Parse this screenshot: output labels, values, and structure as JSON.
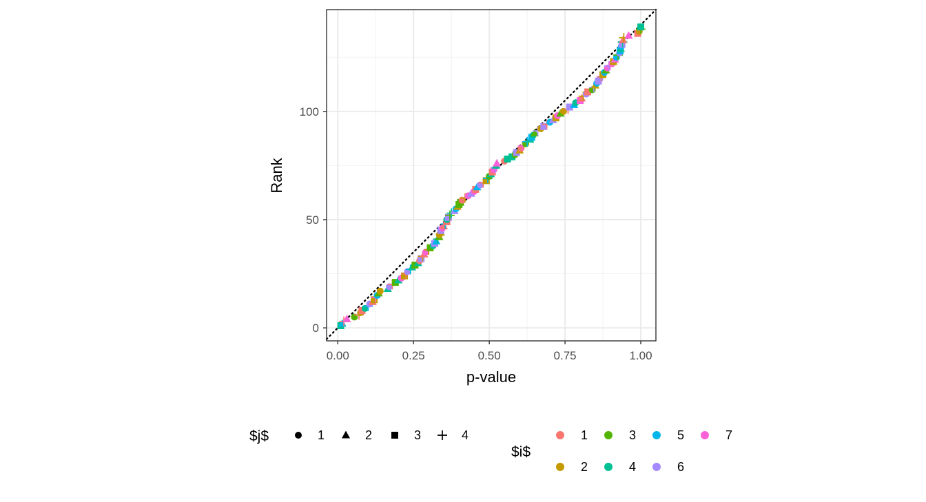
{
  "chart_data": {
    "type": "scatter",
    "xlabel": "p-value",
    "ylabel": "Rank",
    "xlim": [
      -0.037,
      1.05
    ],
    "ylim": [
      -6,
      147
    ],
    "x_ticks": [
      "0.00",
      "0.25",
      "0.50",
      "0.75",
      "1.00"
    ],
    "x_tick_values": [
      0,
      0.25,
      0.5,
      0.75,
      1
    ],
    "y_ticks": [
      "0",
      "50",
      "100"
    ],
    "y_tick_values": [
      0,
      50,
      100
    ],
    "grid": true,
    "reference_line": {
      "style": "dotted",
      "from": [
        0,
        0
      ],
      "to": [
        1,
        140
      ]
    },
    "legend_position": "bottom",
    "legend_j": {
      "title": "$j$",
      "items": [
        {
          "label": "1",
          "shape": "circle"
        },
        {
          "label": "2",
          "shape": "triangle"
        },
        {
          "label": "3",
          "shape": "square"
        },
        {
          "label": "4",
          "shape": "plus"
        }
      ]
    },
    "legend_i": {
      "title": "$i$",
      "items": [
        {
          "label": "1",
          "color": "#F8766D"
        },
        {
          "label": "2",
          "color": "#C49A00"
        },
        {
          "label": "3",
          "color": "#53B400"
        },
        {
          "label": "4",
          "color": "#00C094"
        },
        {
          "label": "5",
          "color": "#00B6EB"
        },
        {
          "label": "6",
          "color": "#A58AFF"
        },
        {
          "label": "7",
          "color": "#FB61D7"
        }
      ]
    },
    "points": [
      [
        0.01,
        1,
        4,
        3
      ],
      [
        0.015,
        2,
        5,
        2
      ],
      [
        0.02,
        3,
        1,
        4
      ],
      [
        0.03,
        4,
        7,
        2
      ],
      [
        0.055,
        5,
        3,
        1
      ],
      [
        0.07,
        6,
        1,
        4
      ],
      [
        0.075,
        7,
        2,
        1
      ],
      [
        0.08,
        8,
        1,
        3
      ],
      [
        0.09,
        9,
        4,
        1
      ],
      [
        0.1,
        10,
        5,
        4
      ],
      [
        0.105,
        11,
        6,
        1
      ],
      [
        0.115,
        12,
        1,
        2
      ],
      [
        0.12,
        13,
        2,
        3
      ],
      [
        0.125,
        14,
        7,
        4
      ],
      [
        0.13,
        15,
        5,
        1
      ],
      [
        0.135,
        16,
        3,
        2
      ],
      [
        0.14,
        17,
        2,
        1
      ],
      [
        0.165,
        18,
        4,
        2
      ],
      [
        0.17,
        19,
        6,
        1
      ],
      [
        0.18,
        20,
        1,
        4
      ],
      [
        0.19,
        21,
        3,
        3
      ],
      [
        0.2,
        22,
        4,
        2
      ],
      [
        0.21,
        23,
        7,
        1
      ],
      [
        0.22,
        24,
        2,
        3
      ],
      [
        0.225,
        25,
        1,
        4
      ],
      [
        0.23,
        26,
        6,
        1
      ],
      [
        0.24,
        27,
        5,
        4
      ],
      [
        0.245,
        28,
        4,
        2
      ],
      [
        0.255,
        29,
        3,
        3
      ],
      [
        0.265,
        30,
        4,
        2
      ],
      [
        0.27,
        31,
        1,
        1
      ],
      [
        0.275,
        32,
        6,
        3
      ],
      [
        0.28,
        33,
        2,
        4
      ],
      [
        0.285,
        34,
        1,
        2
      ],
      [
        0.29,
        35,
        7,
        1
      ],
      [
        0.3,
        36,
        2,
        4
      ],
      [
        0.305,
        37,
        3,
        3
      ],
      [
        0.315,
        38,
        4,
        1
      ],
      [
        0.32,
        39,
        6,
        3
      ],
      [
        0.325,
        40,
        5,
        2
      ],
      [
        0.33,
        41,
        4,
        4
      ],
      [
        0.335,
        42,
        3,
        2
      ],
      [
        0.335,
        43,
        2,
        1
      ],
      [
        0.34,
        44,
        2,
        2
      ],
      [
        0.34,
        45,
        6,
        3
      ],
      [
        0.345,
        46,
        7,
        1
      ],
      [
        0.35,
        47,
        1,
        2
      ],
      [
        0.355,
        48,
        5,
        4
      ],
      [
        0.36,
        49,
        1,
        3
      ],
      [
        0.36,
        50,
        4,
        1
      ],
      [
        0.365,
        51,
        6,
        3
      ],
      [
        0.37,
        52,
        3,
        4
      ],
      [
        0.375,
        53,
        4,
        4
      ],
      [
        0.385,
        54,
        6,
        2
      ],
      [
        0.39,
        55,
        5,
        1
      ],
      [
        0.395,
        56,
        2,
        2
      ],
      [
        0.4,
        57,
        3,
        3
      ],
      [
        0.405,
        58,
        3,
        3
      ],
      [
        0.41,
        59,
        1,
        1
      ],
      [
        0.42,
        60,
        2,
        4
      ],
      [
        0.43,
        61,
        7,
        1
      ],
      [
        0.44,
        62,
        6,
        2
      ],
      [
        0.45,
        63,
        7,
        1
      ],
      [
        0.455,
        64,
        1,
        3
      ],
      [
        0.46,
        65,
        5,
        2
      ],
      [
        0.47,
        66,
        6,
        1
      ],
      [
        0.48,
        67,
        1,
        4
      ],
      [
        0.49,
        68,
        2,
        3
      ],
      [
        0.495,
        69,
        5,
        4
      ],
      [
        0.5,
        70,
        3,
        1
      ],
      [
        0.505,
        71,
        4,
        2
      ],
      [
        0.51,
        72,
        1,
        3
      ],
      [
        0.515,
        73,
        7,
        1
      ],
      [
        0.52,
        74,
        6,
        4
      ],
      [
        0.522,
        75,
        4,
        2
      ],
      [
        0.525,
        76,
        7,
        2
      ],
      [
        0.55,
        77,
        1,
        1
      ],
      [
        0.56,
        78,
        4,
        3
      ],
      [
        0.575,
        79,
        4,
        3
      ],
      [
        0.585,
        80,
        3,
        1
      ],
      [
        0.59,
        81,
        6,
        3
      ],
      [
        0.6,
        82,
        2,
        2
      ],
      [
        0.605,
        83,
        1,
        1
      ],
      [
        0.61,
        84,
        7,
        4
      ],
      [
        0.62,
        85,
        3,
        1
      ],
      [
        0.625,
        86,
        5,
        4
      ],
      [
        0.635,
        87,
        4,
        2
      ],
      [
        0.64,
        88,
        5,
        3
      ],
      [
        0.645,
        89,
        4,
        1
      ],
      [
        0.65,
        90,
        3,
        2
      ],
      [
        0.66,
        91,
        6,
        4
      ],
      [
        0.67,
        92,
        2,
        1
      ],
      [
        0.68,
        93,
        6,
        3
      ],
      [
        0.69,
        94,
        1,
        4
      ],
      [
        0.7,
        95,
        5,
        1
      ],
      [
        0.71,
        96,
        6,
        2
      ],
      [
        0.72,
        97,
        2,
        3
      ],
      [
        0.725,
        98,
        7,
        1
      ],
      [
        0.735,
        99,
        3,
        2
      ],
      [
        0.745,
        100,
        2,
        1
      ],
      [
        0.76,
        101,
        1,
        4
      ],
      [
        0.765,
        102,
        6,
        3
      ],
      [
        0.78,
        103,
        5,
        2
      ],
      [
        0.785,
        104,
        4,
        1
      ],
      [
        0.8,
        105,
        7,
        3
      ],
      [
        0.805,
        106,
        1,
        2
      ],
      [
        0.81,
        107,
        2,
        4
      ],
      [
        0.82,
        108,
        6,
        1
      ],
      [
        0.825,
        109,
        1,
        3
      ],
      [
        0.84,
        110,
        3,
        1
      ],
      [
        0.845,
        111,
        6,
        4
      ],
      [
        0.85,
        112,
        2,
        2
      ],
      [
        0.855,
        113,
        5,
        1
      ],
      [
        0.86,
        114,
        6,
        3
      ],
      [
        0.865,
        115,
        6,
        1
      ],
      [
        0.87,
        116,
        1,
        4
      ],
      [
        0.875,
        117,
        2,
        3
      ],
      [
        0.88,
        118,
        5,
        1
      ],
      [
        0.885,
        119,
        3,
        2
      ],
      [
        0.89,
        120,
        7,
        1
      ],
      [
        0.895,
        121,
        6,
        4
      ],
      [
        0.905,
        122,
        7,
        1
      ],
      [
        0.91,
        123,
        2,
        3
      ],
      [
        0.915,
        124,
        7,
        2
      ],
      [
        0.92,
        125,
        5,
        1
      ],
      [
        0.925,
        126,
        3,
        4
      ],
      [
        0.93,
        127,
        6,
        1
      ],
      [
        0.932,
        128,
        5,
        3
      ],
      [
        0.934,
        129,
        4,
        2
      ],
      [
        0.936,
        130,
        5,
        1
      ],
      [
        0.938,
        131,
        6,
        3
      ],
      [
        0.94,
        132,
        4,
        4
      ],
      [
        0.942,
        133,
        1,
        2
      ],
      [
        0.944,
        134,
        2,
        4
      ],
      [
        0.96,
        135,
        7,
        2
      ],
      [
        0.99,
        136,
        1,
        3
      ],
      [
        0.995,
        137,
        2,
        1
      ],
      [
        1.0,
        138,
        3,
        4
      ],
      [
        1.0,
        139,
        4,
        3
      ]
    ]
  }
}
